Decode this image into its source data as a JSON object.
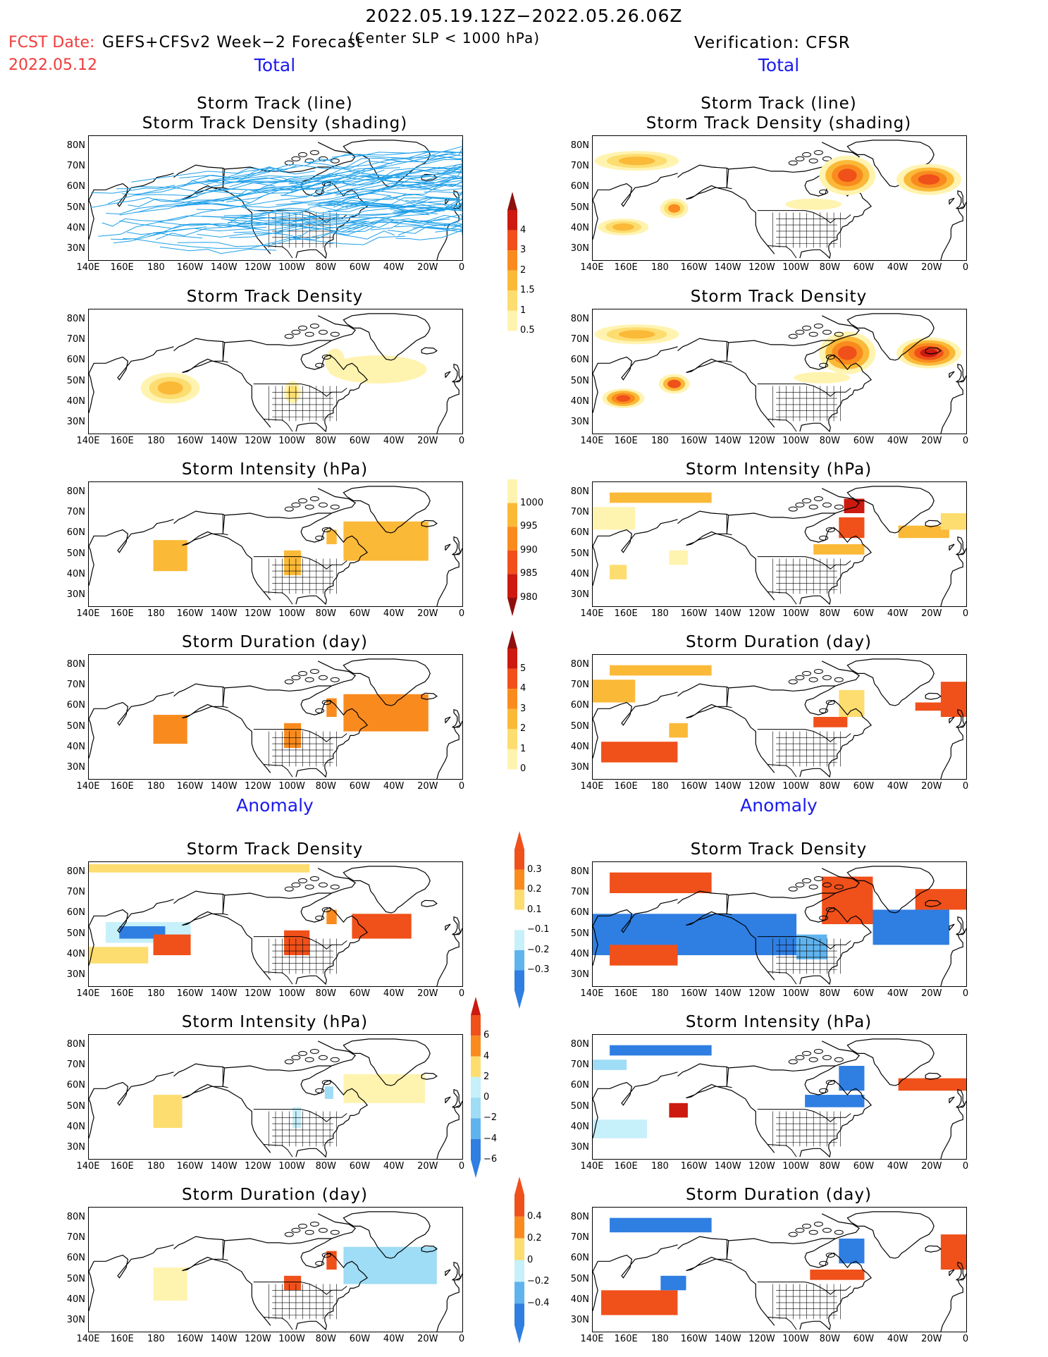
{
  "header": {
    "period": "2022.05.19.12Z−2022.05.26.06Z",
    "fcst_label": "FCST Date:",
    "fcst_date": "2022.05.12",
    "model": "GEFS+CFSv2 Week−2 Forecast",
    "condition": "(Center SLP < 1000 hPa)",
    "verification": "Verification: CFSR"
  },
  "sections": {
    "total": "Total",
    "anomaly": "Anomaly"
  },
  "panel_titles": {
    "track_line": "Storm Track (line)",
    "track_density_shading": "Storm Track Density (shading)",
    "density": "Storm Track Density",
    "intensity": "Storm Intensity (hPa)",
    "duration": "Storm Duration (day)"
  },
  "axes": {
    "lat": [
      "80N",
      "70N",
      "60N",
      "50N",
      "40N",
      "30N"
    ],
    "lon": [
      "140E",
      "160E",
      "180",
      "160W",
      "140W",
      "120W",
      "100W",
      "80W",
      "60W",
      "40W",
      "20W",
      "0"
    ]
  },
  "colorbars": {
    "density": [
      "4",
      "3",
      "2",
      "1.5",
      "1",
      "0.5"
    ],
    "intensity": [
      "1000",
      "995",
      "990",
      "985",
      "980"
    ],
    "duration": [
      "5",
      "4",
      "3",
      "2",
      "1",
      "0"
    ],
    "density_anom": [
      "0.3",
      "0.2",
      "0.1",
      "−0.1",
      "−0.2",
      "−0.3"
    ],
    "intensity_anom": [
      "6",
      "4",
      "2",
      "0",
      "−2",
      "−4",
      "−6"
    ],
    "duration_anom": [
      "0.4",
      "0.2",
      "0",
      "−0.2",
      "−0.4"
    ]
  },
  "colors": {
    "pos": [
      "#fff3b0",
      "#fddd70",
      "#fbb938",
      "#f98b1e",
      "#f0501a",
      "#cc1a10",
      "#8f0f0f"
    ],
    "neg": [
      "#c6f0fa",
      "#9fdcf5",
      "#5fb3ee",
      "#2f7ee2",
      "#1955c8",
      "#0d3594"
    ],
    "track_line": "#1fa0e8",
    "title_red": "#f03c3c",
    "section_blue": "#1a1aee"
  }
}
